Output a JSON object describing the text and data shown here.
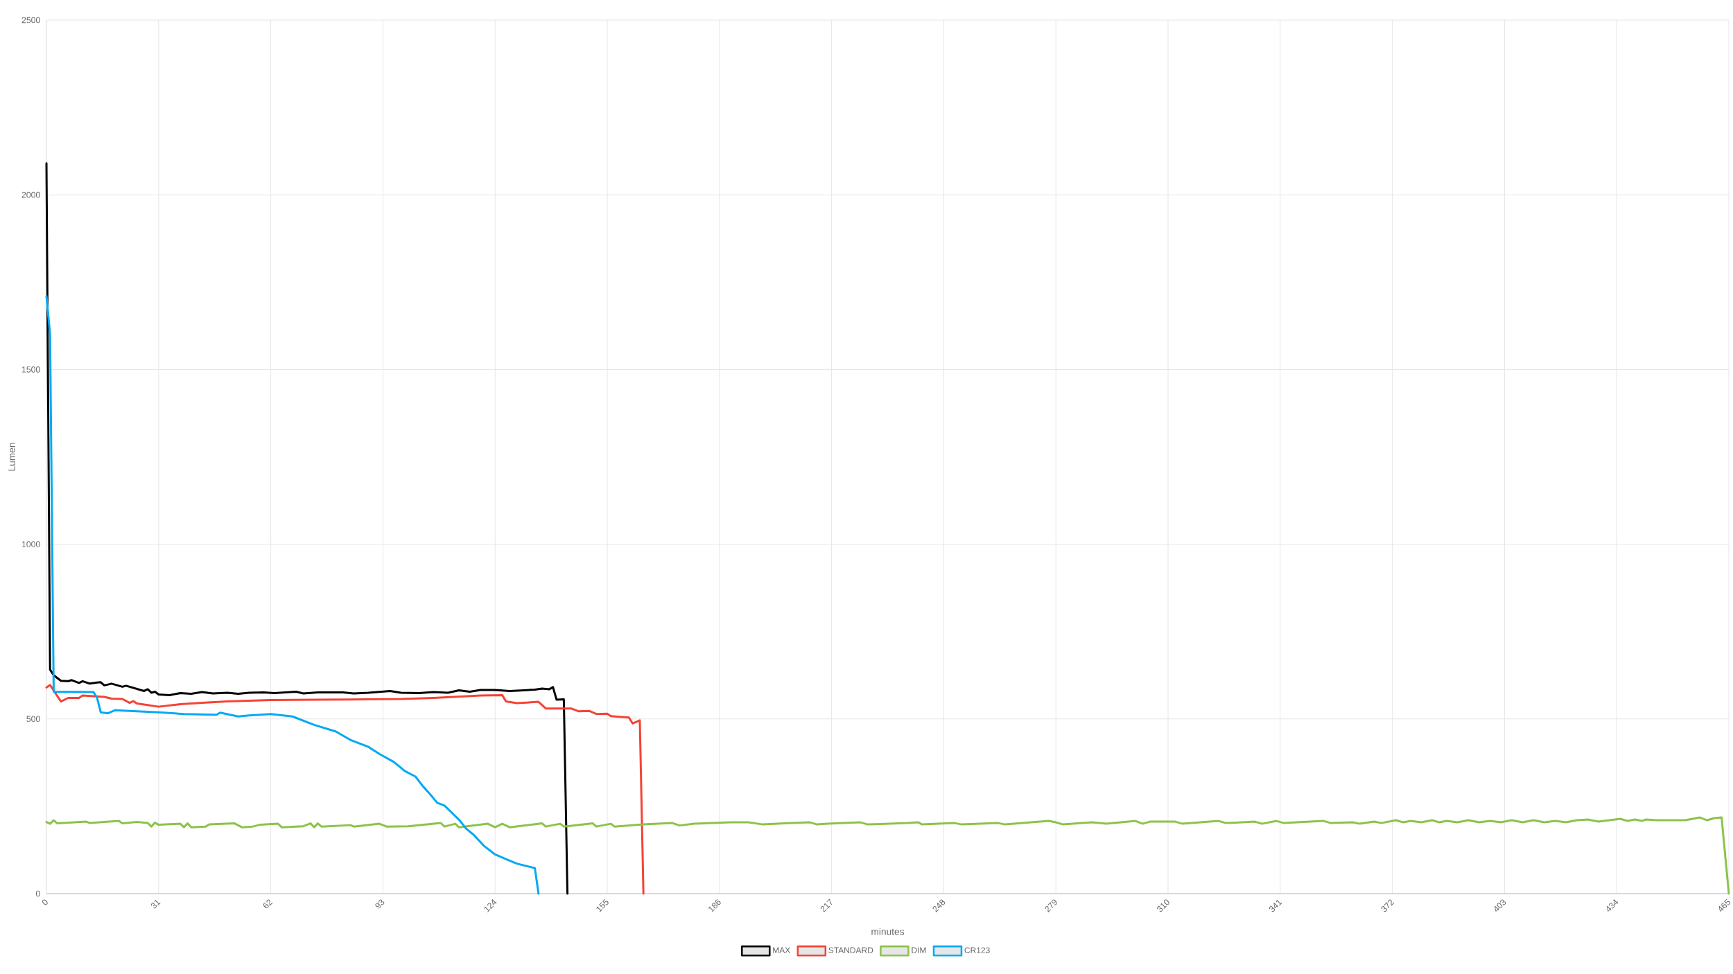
{
  "chart_data": {
    "type": "line",
    "xlabel": "minutes",
    "ylabel": "Lumen",
    "xlim": [
      0,
      465
    ],
    "xticks": [
      0,
      31,
      62,
      93,
      124,
      155,
      186,
      217,
      248,
      279,
      310,
      341,
      372,
      403,
      434,
      465
    ],
    "ylim": [
      0,
      2500
    ],
    "yticks": [
      0,
      500,
      1000,
      1500,
      2000,
      2500
    ],
    "grid": true,
    "legend": "bottom",
    "series": [
      {
        "name": "MAX",
        "color": "#000000",
        "x": [
          0,
          1,
          2,
          4,
          6,
          7,
          9,
          10,
          12,
          14,
          15,
          16,
          18,
          21,
          22,
          27,
          28,
          29,
          30,
          31,
          34,
          37,
          40,
          43,
          46,
          50,
          53,
          56,
          60,
          63,
          66,
          69,
          71,
          75,
          82,
          85,
          89,
          95,
          98,
          103,
          107,
          111,
          114,
          117,
          120,
          124,
          128,
          132,
          135,
          137,
          139,
          140,
          141,
          143,
          144
        ],
        "values": [
          2090,
          641,
          625,
          609,
          608,
          611,
          603,
          608,
          601,
          604,
          605,
          596,
          601,
          592,
          595,
          580,
          585,
          575,
          578,
          570,
          568,
          574,
          572,
          577,
          573,
          575,
          572,
          575,
          576,
          574,
          576,
          578,
          573,
          576,
          576,
          573,
          575,
          580,
          575,
          574,
          577,
          575,
          582,
          578,
          583,
          583,
          580,
          582,
          584,
          587,
          585,
          591,
          555,
          556,
          0
        ]
      },
      {
        "name": "STANDARD",
        "color": "#f44336",
        "x": [
          0,
          1,
          4,
          6,
          9,
          10,
          16,
          18,
          21,
          23,
          24,
          25,
          27,
          31,
          37,
          43,
          50,
          56,
          62,
          75,
          88,
          98,
          107,
          120,
          126,
          127,
          130,
          133,
          136,
          138,
          145,
          147,
          150,
          152,
          155,
          156,
          161,
          162,
          164,
          165
        ],
        "values": [
          590,
          597,
          550,
          560,
          560,
          567,
          563,
          558,
          557,
          546,
          551,
          544,
          541,
          535,
          542,
          546,
          550,
          552,
          554,
          555,
          556,
          557,
          560,
          567,
          568,
          550,
          545,
          547,
          549,
          530,
          530,
          522,
          523,
          514,
          515,
          508,
          504,
          487,
          496,
          0
        ]
      },
      {
        "name": "DIM",
        "color": "#8bc34a",
        "x": [
          0,
          1,
          2,
          3,
          11,
          12,
          20,
          21,
          25,
          28,
          29,
          30,
          31,
          37,
          38,
          39,
          40,
          44,
          45,
          52,
          54,
          57,
          59,
          64,
          65,
          71,
          73,
          74,
          75,
          76,
          84,
          85,
          92,
          94,
          100,
          109,
          110,
          113,
          114,
          122,
          124,
          126,
          128,
          137,
          138,
          142,
          143,
          151,
          152,
          156,
          157,
          165,
          173,
          175,
          179,
          189,
          194,
          198,
          206,
          211,
          213,
          216,
          225,
          227,
          238,
          241,
          242,
          251,
          253,
          263,
          265,
          277,
          279,
          281,
          289,
          293,
          301,
          303,
          305,
          312,
          314,
          324,
          326,
          334,
          336,
          340,
          342,
          353,
          355,
          361,
          363,
          367,
          369,
          373,
          375,
          377,
          380,
          383,
          385,
          387,
          390,
          393,
          396,
          399,
          402,
          405,
          408,
          411,
          414,
          417,
          420,
          423,
          426,
          429,
          432,
          435,
          437,
          439,
          441,
          442,
          445,
          453,
          457,
          459,
          461,
          463,
          465
        ],
        "values": [
          205,
          200,
          210,
          201,
          206,
          202,
          208,
          201,
          205,
          202,
          192,
          203,
          197,
          200,
          190,
          201,
          190,
          192,
          198,
          201,
          190,
          192,
          197,
          200,
          190,
          193,
          201,
          190,
          201,
          192,
          196,
          192,
          200,
          192,
          193,
          202,
          192,
          200,
          190,
          200,
          190,
          200,
          190,
          201,
          192,
          200,
          192,
          201,
          192,
          200,
          192,
          198,
          202,
          195,
          200,
          204,
          204,
          198,
          202,
          204,
          198,
          200,
          204,
          198,
          202,
          204,
          198,
          202,
          198,
          202,
          198,
          208,
          204,
          198,
          204,
          200,
          208,
          200,
          206,
          206,
          200,
          208,
          202,
          206,
          200,
          208,
          202,
          208,
          202,
          204,
          200,
          206,
          202,
          210,
          204,
          208,
          204,
          210,
          204,
          208,
          204,
          210,
          204,
          208,
          204,
          210,
          204,
          210,
          204,
          208,
          204,
          210,
          212,
          206,
          210,
          214,
          208,
          212,
          208,
          212,
          210,
          210,
          218,
          210,
          216,
          218,
          0
        ]
      },
      {
        "name": "CR123",
        "color": "#03a9f4",
        "x": [
          0,
          1,
          2,
          13,
          14,
          15,
          17,
          19,
          31,
          38,
          47,
          48,
          53,
          56,
          62,
          68,
          74,
          80,
          84,
          89,
          92,
          96,
          98,
          99,
          102,
          104,
          106,
          108,
          110,
          112,
          114,
          116,
          118,
          121,
          124,
          127,
          130,
          135,
          136
        ],
        "values": [
          1710,
          1600,
          578,
          577,
          560,
          519,
          516,
          525,
          519,
          514,
          512,
          518,
          507,
          510,
          514,
          507,
          483,
          464,
          440,
          420,
          400,
          377,
          360,
          351,
          335,
          308,
          285,
          260,
          252,
          232,
          212,
          186,
          169,
          136,
          112,
          99,
          86,
          73,
          0
        ]
      }
    ]
  }
}
